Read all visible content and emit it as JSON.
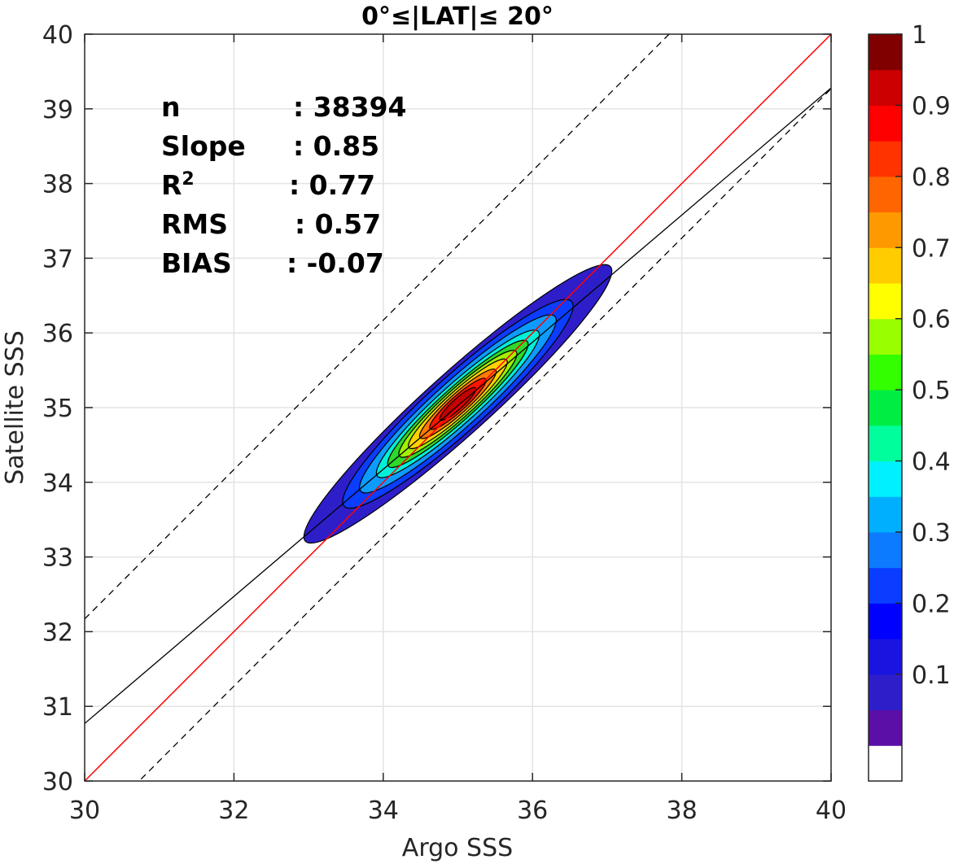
{
  "chart_data": {
    "type": "contour",
    "title": "0°≤|LAT|≤ 20°",
    "xlabel": "Argo SSS",
    "ylabel": "Satellite SSS",
    "xlim": [
      30,
      40
    ],
    "ylim": [
      30,
      40
    ],
    "xticks": [
      "30",
      "32",
      "34",
      "36",
      "38",
      "40"
    ],
    "yticks": [
      "30",
      "31",
      "32",
      "33",
      "34",
      "35",
      "36",
      "37",
      "38",
      "39",
      "40"
    ],
    "grid": true,
    "stats": [
      {
        "label": "n",
        "value": ": 38394"
      },
      {
        "label": "Slope",
        "value": ": 0.85"
      },
      {
        "label": "R",
        "sup": "2",
        "value": ": 0.77"
      },
      {
        "label": "RMS",
        "value": ": 0.57"
      },
      {
        "label": "BIAS",
        "value": ": -0.07"
      }
    ],
    "lines": {
      "one_to_one": {
        "color": "#ff0000",
        "slope": 1,
        "intercept": 0
      },
      "fit": {
        "color": "#000000",
        "slope": 0.85,
        "x0": 30,
        "y0": 30.77,
        "x1": 40,
        "y1": 39.28
      },
      "upper_bound": {
        "color": "#000000",
        "dash": true,
        "offset": 2.17
      },
      "lower_bound": {
        "color": "#000000",
        "dash": true,
        "offset": -0.73
      }
    },
    "density": {
      "center": [
        35.0,
        35.05
      ],
      "angle_deg": 42,
      "levels": [
        {
          "level": 0.05,
          "color": "#2e1ec9",
          "rx": 2.75,
          "ry": 0.42
        },
        {
          "level": 0.2,
          "color": "#0a3dff",
          "rx": 2.05,
          "ry": 0.37
        },
        {
          "level": 0.3,
          "color": "#0d9bff",
          "rx": 1.75,
          "ry": 0.31
        },
        {
          "level": 0.4,
          "color": "#00f0d8",
          "rx": 1.45,
          "ry": 0.26
        },
        {
          "level": 0.5,
          "color": "#2ed92a",
          "rx": 1.25,
          "ry": 0.22
        },
        {
          "level": 0.6,
          "color": "#a0f000",
          "rx": 1.05,
          "ry": 0.19
        },
        {
          "level": 0.7,
          "color": "#ffd200",
          "rx": 0.88,
          "ry": 0.16
        },
        {
          "level": 0.8,
          "color": "#ff7a00",
          "rx": 0.68,
          "ry": 0.13
        },
        {
          "level": 0.9,
          "color": "#ff1500",
          "rx": 0.5,
          "ry": 0.1
        },
        {
          "level": 0.95,
          "color": "#c40000",
          "rx": 0.32,
          "ry": 0.07
        }
      ]
    },
    "colorbar": {
      "ticks": [
        "0.1",
        "0.2",
        "0.3",
        "0.4",
        "0.5",
        "0.6",
        "0.7",
        "0.8",
        "0.9",
        "1"
      ],
      "colors": [
        "#ffffff",
        "#5b0fa6",
        "#2e1ec9",
        "#1a14e0",
        "#0000ff",
        "#0a3dff",
        "#0d7bff",
        "#00b0ff",
        "#00f0ff",
        "#00ff9c",
        "#00ee44",
        "#33ff00",
        "#99ff00",
        "#ffff00",
        "#ffcc00",
        "#ff9900",
        "#ff6600",
        "#ff3300",
        "#ff0000",
        "#cc0000",
        "#800000"
      ]
    }
  }
}
